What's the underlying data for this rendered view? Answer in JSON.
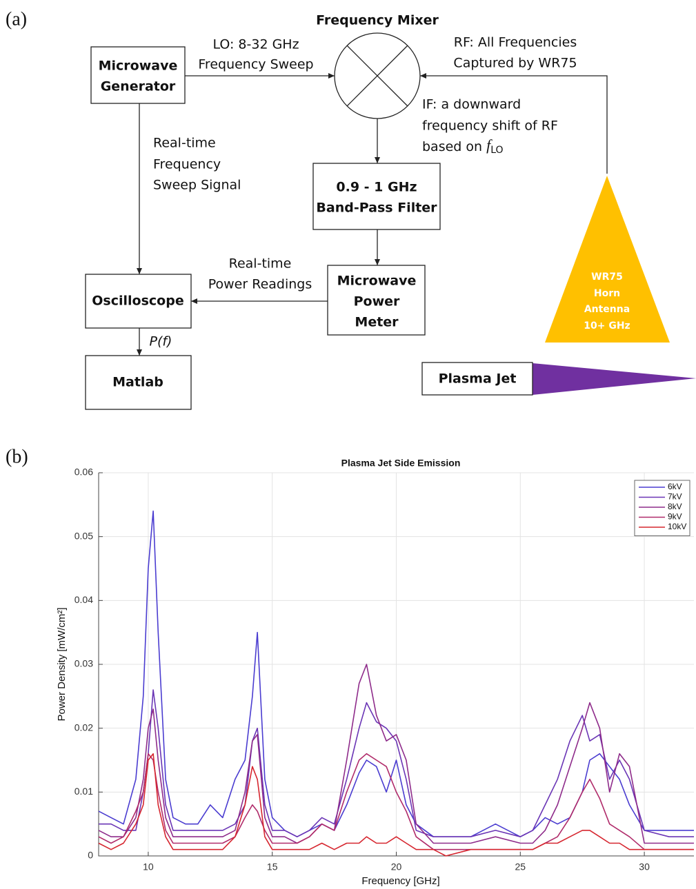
{
  "panels": {
    "a": "(a)",
    "b": "(b)"
  },
  "diagram": {
    "title": "Frequency Mixer",
    "nodes": {
      "generator": {
        "lines": [
          "Microwave",
          "Generator"
        ]
      },
      "bpf": {
        "lines": [
          "0.9 - 1 GHz",
          "Band-Pass Filter"
        ]
      },
      "meter": {
        "lines": [
          "Microwave",
          "Power",
          "Meter"
        ]
      },
      "oscilloscope": {
        "lines": [
          "Oscilloscope"
        ]
      },
      "matlab": {
        "lines": [
          "Matlab"
        ]
      },
      "antenna": {
        "lines": [
          "WR75",
          "Horn",
          "Antenna",
          "10+ GHz"
        ]
      },
      "plasma": {
        "lines": [
          "Plasma Jet"
        ]
      }
    },
    "edges": {
      "lo": {
        "lines": [
          "LO: 8-32 GHz",
          "Frequency Sweep"
        ]
      },
      "rf": {
        "lines": [
          "RF: All Frequencies",
          "Captured by WR75"
        ]
      },
      "if": {
        "lines": [
          "IF: a downward",
          "frequency shift of RF",
          "based on"
        ],
        "symbol": "f",
        "subscript": "LO"
      },
      "sweep": {
        "lines": [
          "Real-time",
          "Frequency",
          "Sweep Signal"
        ]
      },
      "power": {
        "lines": [
          "Real-time",
          "Power Readings"
        ]
      },
      "pf": {
        "lines": [
          "P(f)"
        ]
      }
    }
  },
  "chart_data": {
    "type": "line",
    "title": "Plasma Jet Side Emission",
    "xlabel": "Frequency [GHz]",
    "ylabel": "Power Density [mW/cm²]",
    "xlim": [
      8,
      32
    ],
    "ylim": [
      0,
      0.06
    ],
    "xticks": [
      10,
      15,
      20,
      25,
      30
    ],
    "yticks": [
      0,
      0.01,
      0.02,
      0.03,
      0.04,
      0.05,
      0.06
    ],
    "grid": true,
    "legend": "upper right",
    "x": [
      8,
      8.5,
      9,
      9.5,
      9.8,
      10,
      10.2,
      10.4,
      10.7,
      11,
      11.5,
      12,
      12.5,
      13,
      13.5,
      13.9,
      14.2,
      14.4,
      14.7,
      15,
      15.5,
      16,
      16.5,
      17,
      17.5,
      18,
      18.5,
      18.8,
      19.2,
      19.6,
      20,
      20.4,
      20.8,
      21.5,
      22,
      23,
      24,
      25,
      25.5,
      26,
      26.5,
      27,
      27.5,
      27.8,
      28.2,
      28.6,
      29,
      29.4,
      30,
      31,
      32
    ],
    "series": [
      {
        "name": "6kV",
        "color": "#4a3cd0",
        "values": [
          0.007,
          0.006,
          0.005,
          0.012,
          0.025,
          0.045,
          0.054,
          0.035,
          0.012,
          0.006,
          0.005,
          0.005,
          0.008,
          0.006,
          0.012,
          0.015,
          0.025,
          0.035,
          0.012,
          0.006,
          0.004,
          0.003,
          0.004,
          0.005,
          0.004,
          0.008,
          0.013,
          0.015,
          0.014,
          0.01,
          0.015,
          0.008,
          0.005,
          0.003,
          0.003,
          0.003,
          0.005,
          0.003,
          0.004,
          0.006,
          0.005,
          0.006,
          0.01,
          0.015,
          0.016,
          0.014,
          0.012,
          0.008,
          0.004,
          0.004,
          0.004
        ]
      },
      {
        "name": "7kV",
        "color": "#6a35b5",
        "values": [
          0.005,
          0.005,
          0.004,
          0.004,
          0.01,
          0.016,
          0.026,
          0.02,
          0.008,
          0.004,
          0.004,
          0.004,
          0.004,
          0.004,
          0.005,
          0.008,
          0.018,
          0.02,
          0.008,
          0.004,
          0.004,
          0.003,
          0.004,
          0.006,
          0.005,
          0.012,
          0.02,
          0.024,
          0.021,
          0.02,
          0.018,
          0.012,
          0.004,
          0.003,
          0.003,
          0.003,
          0.004,
          0.003,
          0.004,
          0.008,
          0.012,
          0.018,
          0.022,
          0.018,
          0.019,
          0.012,
          0.015,
          0.012,
          0.004,
          0.003,
          0.003
        ]
      },
      {
        "name": "8kV",
        "color": "#8e2b8a",
        "values": [
          0.004,
          0.003,
          0.003,
          0.006,
          0.012,
          0.02,
          0.023,
          0.015,
          0.006,
          0.003,
          0.003,
          0.003,
          0.003,
          0.003,
          0.004,
          0.01,
          0.018,
          0.019,
          0.006,
          0.003,
          0.003,
          0.002,
          0.003,
          0.005,
          0.004,
          0.015,
          0.027,
          0.03,
          0.022,
          0.018,
          0.019,
          0.015,
          0.005,
          0.002,
          0.002,
          0.002,
          0.003,
          0.002,
          0.002,
          0.004,
          0.008,
          0.014,
          0.02,
          0.024,
          0.02,
          0.01,
          0.016,
          0.014,
          0.002,
          0.002,
          0.002
        ]
      },
      {
        "name": "9kV",
        "color": "#b02b6a",
        "values": [
          0.003,
          0.002,
          0.003,
          0.007,
          0.01,
          0.016,
          0.015,
          0.01,
          0.004,
          0.002,
          0.002,
          0.002,
          0.002,
          0.002,
          0.003,
          0.006,
          0.008,
          0.007,
          0.004,
          0.002,
          0.002,
          0.002,
          0.003,
          0.005,
          0.004,
          0.01,
          0.015,
          0.016,
          0.015,
          0.014,
          0.01,
          0.007,
          0.003,
          0.001,
          0.001,
          0.001,
          0.001,
          0.001,
          0.001,
          0.002,
          0.003,
          0.006,
          0.01,
          0.012,
          0.009,
          0.005,
          0.004,
          0.003,
          0.001,
          0.001,
          0.001
        ]
      },
      {
        "name": "10kV",
        "color": "#d6262f",
        "values": [
          0.002,
          0.001,
          0.002,
          0.005,
          0.008,
          0.015,
          0.016,
          0.008,
          0.003,
          0.001,
          0.001,
          0.001,
          0.001,
          0.001,
          0.003,
          0.008,
          0.014,
          0.012,
          0.003,
          0.001,
          0.001,
          0.001,
          0.001,
          0.002,
          0.001,
          0.002,
          0.002,
          0.003,
          0.002,
          0.002,
          0.003,
          0.002,
          0.001,
          0.001,
          0,
          0.001,
          0.001,
          0.001,
          0.001,
          0.002,
          0.002,
          0.003,
          0.004,
          0.004,
          0.003,
          0.002,
          0.002,
          0.001,
          0.001,
          0.001,
          0.001
        ]
      }
    ]
  }
}
